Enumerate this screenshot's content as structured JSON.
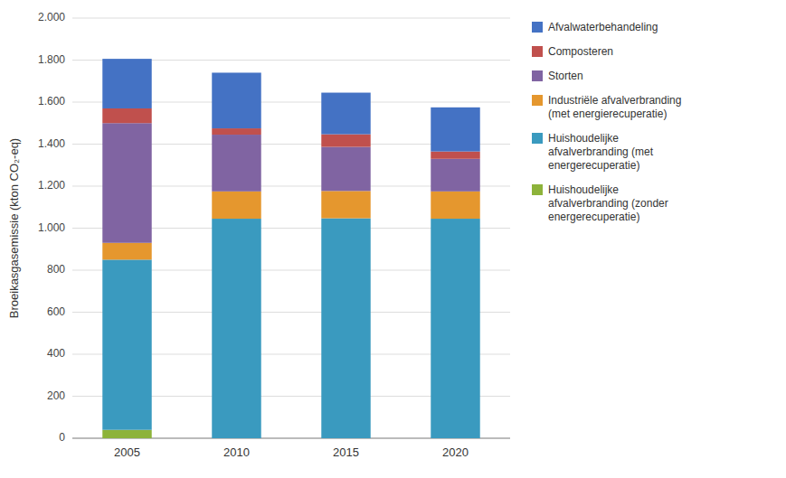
{
  "chart_data": {
    "type": "bar",
    "stacked": true,
    "categories": [
      "2005",
      "2010",
      "2015",
      "2020"
    ],
    "series": [
      {
        "name": "Huishoudelijke\nafvalverbranding (zonder\nenergerecuperatie)",
        "color": "#8db33a",
        "values": [
          40,
          0,
          0,
          0
        ]
      },
      {
        "name": "Huishoudelijke\nafvalverbranding (met\nenergerecuperatie)",
        "color": "#3a9abf",
        "values": [
          810,
          1045,
          1047,
          1045
        ]
      },
      {
        "name": "Industriële afvalverbranding\n(met energierecuperatie)",
        "color": "#e5972e",
        "values": [
          80,
          130,
          130,
          130
        ]
      },
      {
        "name": "Storten",
        "color": "#8064a2",
        "values": [
          570,
          270,
          210,
          155
        ]
      },
      {
        "name": "Composteren",
        "color": "#c0504d",
        "values": [
          70,
          30,
          60,
          35
        ]
      },
      {
        "name": "Afvalwaterbehandeling",
        "color": "#4472c4",
        "values": [
          236,
          265,
          198,
          210
        ]
      }
    ],
    "ylabel": "Broeikasgasemissie (kton CO₂-eq)",
    "ylim": [
      0,
      2000
    ],
    "yticks": [
      0,
      200,
      400,
      600,
      800,
      {
        "value": 1000,
        "label": "1.000"
      },
      {
        "value": 1200,
        "label": "1.200"
      },
      {
        "value": 1400,
        "label": "1.400"
      },
      {
        "value": 1600,
        "label": "1.600"
      },
      {
        "value": 1800,
        "label": "1.800"
      },
      {
        "value": 2000,
        "label": "2.000"
      }
    ],
    "grid": true,
    "legend": "right"
  }
}
